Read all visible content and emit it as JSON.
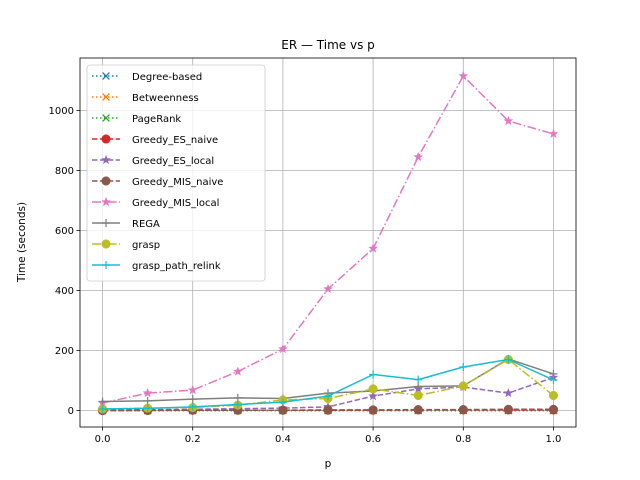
{
  "chart_data": {
    "type": "line",
    "title": "ER — Time vs p",
    "xlabel": "p",
    "ylabel": "Time (seconds)",
    "xlim": [
      -0.05,
      1.05
    ],
    "ylim": [
      -55,
      1175
    ],
    "xticks": [
      0.0,
      0.2,
      0.4,
      0.6,
      0.8,
      1.0
    ],
    "xtick_labels": [
      "0.0",
      "0.2",
      "0.4",
      "0.6",
      "0.8",
      "1.0"
    ],
    "yticks": [
      0,
      200,
      400,
      600,
      800,
      1000
    ],
    "ytick_labels": [
      "0",
      "200",
      "400",
      "600",
      "800",
      "1000"
    ],
    "grid": true,
    "legend_position": "upper-left",
    "x": [
      0.0,
      0.1,
      0.2,
      0.3,
      0.4,
      0.5,
      0.6,
      0.7,
      0.8,
      0.9,
      1.0
    ],
    "series": [
      {
        "name": "Degree-based",
        "color": "#1f77b4",
        "dash": "dotted",
        "marker": "x",
        "values": [
          0,
          0,
          0,
          0,
          0,
          0,
          0,
          0,
          0,
          0,
          0
        ]
      },
      {
        "name": "Betweenness",
        "color": "#ff7f0e",
        "dash": "dotted",
        "marker": "x",
        "values": [
          0,
          0,
          0,
          0,
          0,
          0,
          0,
          0,
          0,
          0,
          0
        ]
      },
      {
        "name": "PageRank",
        "color": "#2ca02c",
        "dash": "dotted",
        "marker": "x",
        "values": [
          0,
          0,
          0,
          0,
          0,
          0,
          0,
          0,
          0,
          0,
          0
        ]
      },
      {
        "name": "Greedy_ES_naive",
        "color": "#d62728",
        "dash": "dashed",
        "marker": "circle",
        "values": [
          0,
          0,
          1,
          1,
          1,
          1,
          1,
          2,
          2,
          2,
          2
        ]
      },
      {
        "name": "Greedy_ES_local",
        "color": "#9467bd",
        "dash": "dashed",
        "marker": "star",
        "values": [
          2,
          3,
          4,
          6,
          8,
          12,
          48,
          72,
          78,
          58,
          110
        ]
      },
      {
        "name": "Greedy_MIS_naive",
        "color": "#8c564b",
        "dash": "dashed",
        "marker": "circle",
        "values": [
          0,
          1,
          1,
          1,
          1,
          2,
          2,
          3,
          3,
          4,
          4
        ]
      },
      {
        "name": "Greedy_MIS_local",
        "color": "#e377c2",
        "dash": "dashdot",
        "marker": "star",
        "values": [
          25,
          58,
          68,
          130,
          205,
          405,
          540,
          845,
          1115,
          965,
          922
        ]
      },
      {
        "name": "REGA",
        "color": "#7f7f7f",
        "dash": "solid",
        "marker": "plus",
        "values": [
          30,
          32,
          38,
          42,
          40,
          58,
          65,
          80,
          82,
          172,
          122
        ]
      },
      {
        "name": "grasp",
        "color": "#bcbd22",
        "dash": "dashdot",
        "marker": "circle",
        "values": [
          5,
          8,
          10,
          18,
          35,
          40,
          72,
          50,
          82,
          170,
          50
        ]
      },
      {
        "name": "grasp_path_relink",
        "color": "#17becf",
        "dash": "solid",
        "marker": "plus",
        "values": [
          5,
          7,
          12,
          20,
          28,
          48,
          120,
          103,
          145,
          170,
          102
        ]
      }
    ]
  }
}
